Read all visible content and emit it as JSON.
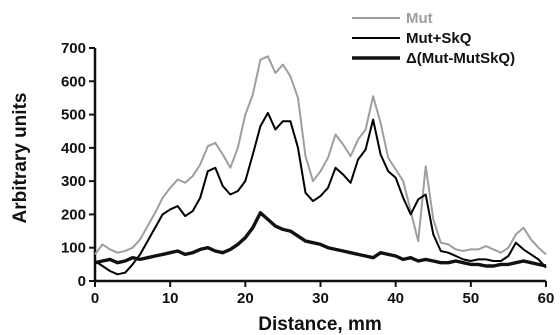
{
  "chart_data": {
    "type": "line",
    "xlabel": "Distance, mm",
    "ylabel": "Arbitrary units",
    "xlim": [
      0,
      60
    ],
    "ylim": [
      0,
      700
    ],
    "xticks": [
      "0",
      "10",
      "20",
      "30",
      "40",
      "50",
      "60"
    ],
    "yticks": [
      "0",
      "100",
      "200",
      "300",
      "400",
      "500",
      "600",
      "700"
    ],
    "grid": false,
    "legend_position": "top-right",
    "series": [
      {
        "name": "Mut",
        "color": "#9e9e9e",
        "stroke": "medium",
        "x": [
          0,
          1,
          2,
          3,
          4,
          5,
          6,
          7,
          8,
          9,
          10,
          11,
          12,
          13,
          14,
          15,
          16,
          17,
          18,
          19,
          20,
          21,
          22,
          23,
          24,
          25,
          26,
          27,
          28,
          29,
          30,
          31,
          32,
          33,
          34,
          35,
          36,
          37,
          38,
          39,
          40,
          41,
          42,
          43,
          44,
          45,
          46,
          47,
          48,
          49,
          50,
          51,
          52,
          53,
          54,
          55,
          56,
          57,
          58,
          59,
          60
        ],
        "values": [
          80,
          110,
          95,
          85,
          90,
          100,
          125,
          165,
          205,
          250,
          280,
          305,
          295,
          315,
          350,
          405,
          415,
          380,
          340,
          400,
          500,
          560,
          665,
          675,
          625,
          650,
          615,
          550,
          375,
          300,
          330,
          370,
          440,
          410,
          375,
          425,
          455,
          555,
          475,
          370,
          335,
          300,
          210,
          120,
          345,
          185,
          115,
          110,
          95,
          90,
          95,
          95,
          105,
          95,
          85,
          100,
          140,
          160,
          125,
          100,
          80
        ]
      },
      {
        "name": "Mut+SkQ",
        "color": "#000000",
        "stroke": "medium",
        "x": [
          0,
          1,
          2,
          3,
          4,
          5,
          6,
          7,
          8,
          9,
          10,
          11,
          12,
          13,
          14,
          15,
          16,
          17,
          18,
          19,
          20,
          21,
          22,
          23,
          24,
          25,
          26,
          27,
          28,
          29,
          30,
          31,
          32,
          33,
          34,
          35,
          36,
          37,
          38,
          39,
          40,
          41,
          42,
          43,
          44,
          45,
          46,
          47,
          48,
          49,
          50,
          51,
          52,
          53,
          54,
          55,
          56,
          57,
          58,
          59,
          60
        ],
        "values": [
          60,
          45,
          30,
          20,
          25,
          50,
          80,
          120,
          160,
          200,
          215,
          225,
          195,
          210,
          250,
          330,
          340,
          285,
          260,
          270,
          300,
          380,
          465,
          505,
          455,
          480,
          480,
          400,
          265,
          240,
          255,
          280,
          340,
          320,
          295,
          365,
          395,
          485,
          380,
          330,
          310,
          250,
          200,
          245,
          260,
          140,
          90,
          85,
          75,
          65,
          60,
          65,
          65,
          60,
          60,
          75,
          115,
          95,
          80,
          65,
          40
        ]
      },
      {
        "name": "Δ(Mut-MutSkQ)",
        "color": "#111111",
        "stroke": "thick",
        "x": [
          0,
          1,
          2,
          3,
          4,
          5,
          6,
          7,
          8,
          9,
          10,
          11,
          12,
          13,
          14,
          15,
          16,
          17,
          18,
          19,
          20,
          21,
          22,
          23,
          24,
          25,
          26,
          27,
          28,
          29,
          30,
          31,
          32,
          33,
          34,
          35,
          36,
          37,
          38,
          39,
          40,
          41,
          42,
          43,
          44,
          45,
          46,
          47,
          48,
          49,
          50,
          51,
          52,
          53,
          54,
          55,
          56,
          57,
          58,
          59,
          60
        ],
        "values": [
          55,
          60,
          65,
          55,
          60,
          70,
          65,
          70,
          75,
          80,
          85,
          90,
          80,
          85,
          95,
          100,
          90,
          85,
          95,
          110,
          130,
          160,
          205,
          185,
          165,
          155,
          150,
          135,
          120,
          115,
          110,
          100,
          95,
          90,
          85,
          80,
          75,
          70,
          85,
          80,
          75,
          65,
          70,
          60,
          65,
          60,
          55,
          55,
          60,
          55,
          50,
          50,
          45,
          45,
          50,
          50,
          55,
          60,
          55,
          50,
          45
        ]
      }
    ]
  }
}
